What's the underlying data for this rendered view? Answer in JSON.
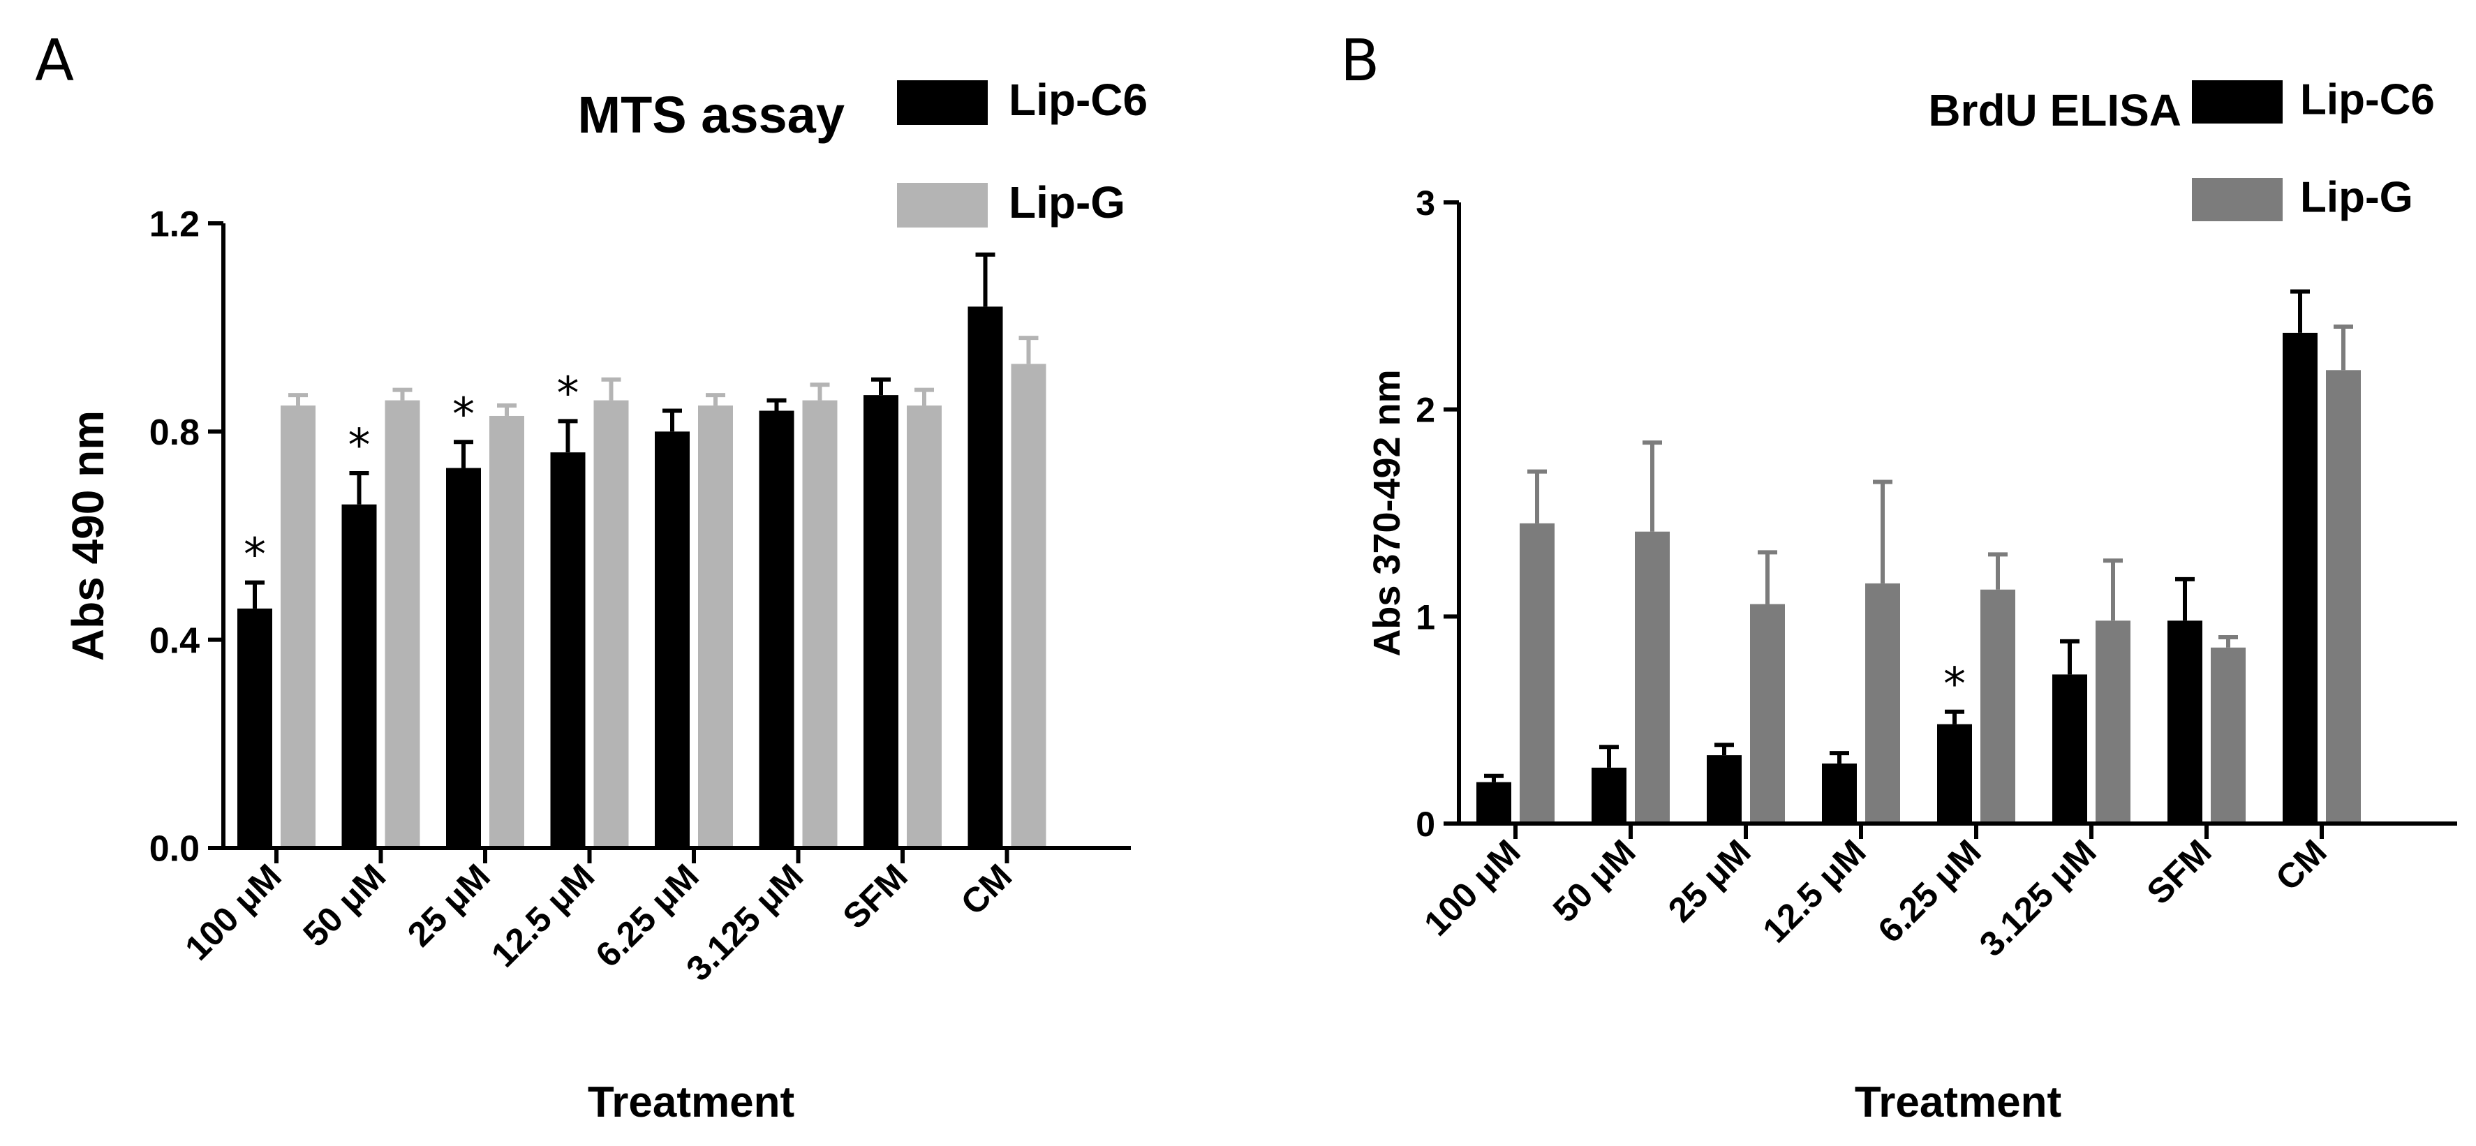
{
  "chart_data": [
    {
      "panel_label": "A",
      "type": "bar",
      "title": "MTS assay",
      "xlabel": "Treatment",
      "ylabel": "Abs 490 nm",
      "ylim": [
        0,
        1.2
      ],
      "yticks": [
        "0.0",
        "0.4",
        "0.8",
        "1.2"
      ],
      "categories": [
        "100 μM",
        "50 μM",
        "25 μM",
        "12.5 μM",
        "6.25 μM",
        "3.125 μM",
        "SFM",
        "CM"
      ],
      "series": [
        {
          "name": "Lip-C6",
          "color": "#000000",
          "values": [
            0.46,
            0.66,
            0.73,
            0.76,
            0.8,
            0.84,
            0.87,
            1.04
          ],
          "errors": [
            0.05,
            0.06,
            0.05,
            0.06,
            0.04,
            0.02,
            0.03,
            0.1
          ]
        },
        {
          "name": "Lip-G",
          "color": "#b4b4b4",
          "values": [
            0.85,
            0.86,
            0.83,
            0.86,
            0.85,
            0.86,
            0.85,
            0.93
          ],
          "errors": [
            0.02,
            0.02,
            0.02,
            0.04,
            0.02,
            0.03,
            0.03,
            0.05
          ]
        }
      ],
      "significance": [
        "*",
        "*",
        "*",
        "*",
        "",
        "",
        "",
        ""
      ],
      "legend_position": "top-right",
      "grid": false
    },
    {
      "panel_label": "B",
      "type": "bar",
      "title": "BrdU ELISA",
      "xlabel": "Treatment",
      "ylabel": "Abs 370-492 nm",
      "ylim": [
        0,
        3
      ],
      "yticks": [
        "0",
        "1",
        "2",
        "3"
      ],
      "categories": [
        "100 μM",
        "50 μM",
        "25 μM",
        "12.5 μM",
        "6.25 μM",
        "3.125 μM",
        "SFM",
        "CM"
      ],
      "series": [
        {
          "name": "Lip-C6",
          "color": "#000000",
          "values": [
            0.2,
            0.27,
            0.33,
            0.29,
            0.48,
            0.72,
            0.98,
            2.37
          ],
          "errors": [
            0.03,
            0.1,
            0.05,
            0.05,
            0.06,
            0.16,
            0.2,
            0.2
          ]
        },
        {
          "name": "Lip-G",
          "color": "#7c7c7c",
          "values": [
            1.45,
            1.41,
            1.06,
            1.16,
            1.13,
            0.98,
            0.85,
            2.19
          ],
          "errors": [
            0.25,
            0.43,
            0.25,
            0.49,
            0.17,
            0.29,
            0.05,
            0.21
          ]
        }
      ],
      "significance": [
        "",
        "",
        "",
        "",
        "*",
        "",
        "",
        ""
      ],
      "legend_position": "top-right",
      "grid": false
    }
  ]
}
